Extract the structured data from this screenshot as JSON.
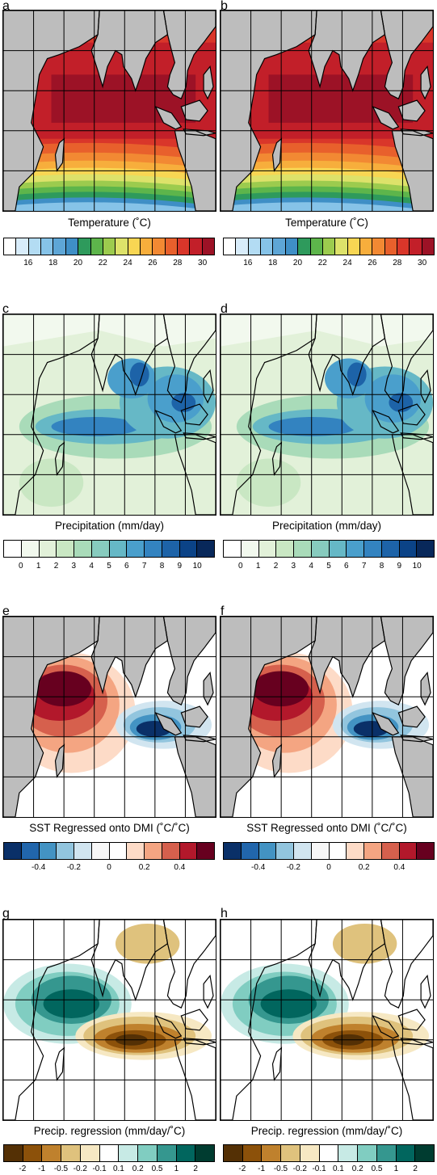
{
  "panels": [
    {
      "id": "a",
      "type": "temp"
    },
    {
      "id": "b",
      "type": "temp"
    },
    {
      "id": "c",
      "type": "precip"
    },
    {
      "id": "d",
      "type": "precip"
    },
    {
      "id": "e",
      "type": "sst"
    },
    {
      "id": "f",
      "type": "sst"
    },
    {
      "id": "g",
      "type": "preg"
    },
    {
      "id": "h",
      "type": "preg"
    }
  ],
  "colorbars": {
    "temp": {
      "title": "Temperature (˚C)",
      "colors": [
        "#ffffff",
        "#d8ecfa",
        "#b3dcf3",
        "#86c3e8",
        "#5ea6d6",
        "#3f8fc6",
        "#2e9a5c",
        "#5db54b",
        "#9ccb4e",
        "#dde26a",
        "#f8d653",
        "#f7ae3c",
        "#f28933",
        "#e8602c",
        "#d9362a",
        "#c21f29",
        "#9c1226"
      ],
      "ticks": [
        "16",
        "18",
        "20",
        "22",
        "24",
        "26",
        "28",
        "30"
      ]
    },
    "precip": {
      "title": "Precipitation (mm/day)",
      "colors": [
        "#ffffff",
        "#f2f9ee",
        "#e2f1d9",
        "#c9e7c3",
        "#a9dbb9",
        "#87cbbe",
        "#66b8c6",
        "#4a9fcc",
        "#3383c0",
        "#1d63a8",
        "#0b4387",
        "#08285a"
      ],
      "ticks": [
        "0",
        "1",
        "2",
        "3",
        "4",
        "5",
        "6",
        "7",
        "8",
        "9",
        "10"
      ]
    },
    "sst": {
      "title": "SST Regressed onto DMI (˚C/˚C)",
      "colors": [
        "#0a3068",
        "#2166ac",
        "#4393c3",
        "#92c5de",
        "#d1e5f0",
        "#f7f7f7",
        "#ffffff",
        "#fddbc7",
        "#f4a582",
        "#d6604d",
        "#b2182b",
        "#67001f"
      ],
      "ticks": [
        "-0.4",
        "-0.2",
        "0",
        "0.2",
        "0.4"
      ]
    },
    "preg": {
      "title": "Precip. regression (mm/day/˚C)",
      "colors": [
        "#543005",
        "#8c510a",
        "#bf812d",
        "#dfc27d",
        "#f6e8c3",
        "#ffffff",
        "#c7eae5",
        "#80cdc1",
        "#35978f",
        "#01665e",
        "#003c30"
      ],
      "ticks": [
        "-2",
        "-1",
        "-0.5",
        "-0.2",
        "-0.1",
        "0.1",
        "0.2",
        "0.5",
        "1",
        "2"
      ]
    }
  }
}
